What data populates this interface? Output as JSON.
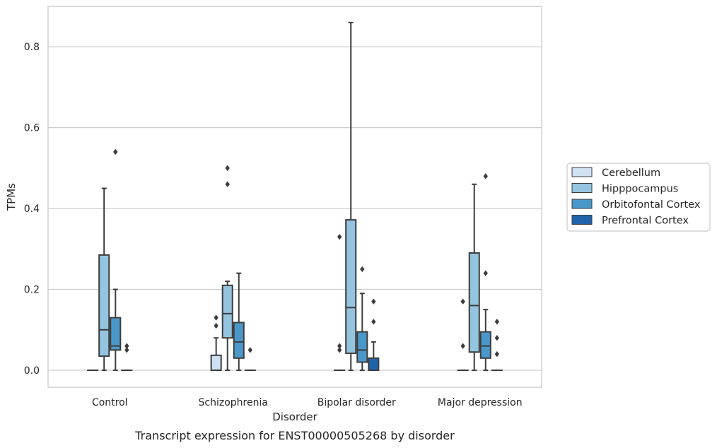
{
  "chart_data": {
    "type": "box",
    "caption": "Transcript expression for ENST00000505268 by disorder",
    "xlabel": "Disorder",
    "ylabel": "TPMs",
    "ylim": [
      -0.042,
      0.9
    ],
    "yticks": [
      "0.0",
      "0.2",
      "0.4",
      "0.6",
      "0.8"
    ],
    "ytick_values": [
      0.0,
      0.2,
      0.4,
      0.6,
      0.8
    ],
    "grid": true,
    "legend_position": "right",
    "categories": [
      "Control",
      "Schizophrenia",
      "Bipolar disorder",
      "Major depression"
    ],
    "series": [
      {
        "name": "Cerebellum",
        "color": "#d0e1f2",
        "boxes": [
          {
            "whislo": 0,
            "q1": 0,
            "med": 0,
            "q3": 0,
            "whishi": 0,
            "fliers": []
          },
          {
            "whislo": 0,
            "q1": 0,
            "med": 0,
            "q3": 0.037,
            "whishi": 0.08,
            "fliers": [
              0.11,
              0.13
            ]
          },
          {
            "whislo": 0,
            "q1": 0,
            "med": 0,
            "q3": 0,
            "whishi": 0,
            "fliers": [
              0.05,
              0.06,
              0.33
            ]
          },
          {
            "whislo": 0,
            "q1": 0,
            "med": 0,
            "q3": 0,
            "whishi": 0,
            "fliers": [
              0.06,
              0.17
            ]
          }
        ]
      },
      {
        "name": "Hipppocampus",
        "color": "#94c4df",
        "boxes": [
          {
            "whislo": 0,
            "q1": 0.035,
            "med": 0.1,
            "q3": 0.285,
            "whishi": 0.45,
            "fliers": []
          },
          {
            "whislo": 0,
            "q1": 0.08,
            "med": 0.14,
            "q3": 0.21,
            "whishi": 0.22,
            "fliers": [
              0.46,
              0.5
            ]
          },
          {
            "whislo": 0,
            "q1": 0.042,
            "med": 0.155,
            "q3": 0.372,
            "whishi": 0.86,
            "fliers": []
          },
          {
            "whislo": 0,
            "q1": 0.045,
            "med": 0.16,
            "q3": 0.29,
            "whishi": 0.46,
            "fliers": []
          }
        ]
      },
      {
        "name": "Orbitofontal Cortex",
        "color": "#4a98c9",
        "boxes": [
          {
            "whislo": 0,
            "q1": 0.05,
            "med": 0.06,
            "q3": 0.13,
            "whishi": 0.2,
            "fliers": [
              0.54
            ]
          },
          {
            "whislo": 0,
            "q1": 0.03,
            "med": 0.07,
            "q3": 0.118,
            "whishi": 0.24,
            "fliers": []
          },
          {
            "whislo": 0,
            "q1": 0.02,
            "med": 0.05,
            "q3": 0.095,
            "whishi": 0.19,
            "fliers": [
              0.25
            ]
          },
          {
            "whislo": 0,
            "q1": 0.03,
            "med": 0.06,
            "q3": 0.095,
            "whishi": 0.15,
            "fliers": [
              0.24,
              0.48
            ]
          }
        ]
      },
      {
        "name": "Prefrontal Cortex",
        "color": "#2163aa",
        "boxes": [
          {
            "whislo": 0,
            "q1": 0,
            "med": 0,
            "q3": 0,
            "whishi": 0,
            "fliers": [
              0.05,
              0.06
            ]
          },
          {
            "whislo": 0,
            "q1": 0,
            "med": 0,
            "q3": 0,
            "whishi": 0,
            "fliers": [
              0.05
            ]
          },
          {
            "whislo": 0,
            "q1": 0,
            "med": 0,
            "q3": 0.03,
            "whishi": 0.07,
            "fliers": [
              0.12,
              0.17
            ]
          },
          {
            "whislo": 0,
            "q1": 0,
            "med": 0,
            "q3": 0,
            "whishi": 0,
            "fliers": [
              0.04,
              0.08,
              0.12
            ]
          }
        ]
      }
    ]
  }
}
